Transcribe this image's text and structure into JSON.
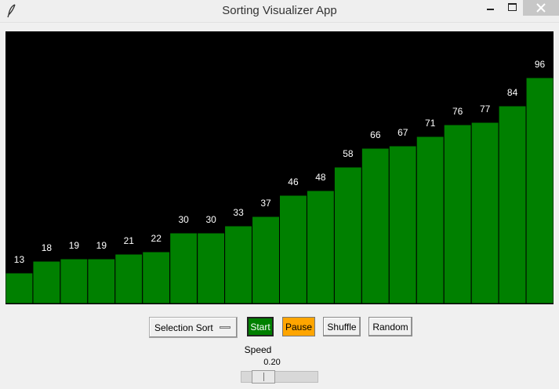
{
  "window": {
    "title": "Sorting Visualizer App",
    "icon": "feather-icon"
  },
  "chart_data": {
    "type": "bar",
    "values": [
      13,
      18,
      19,
      19,
      21,
      22,
      30,
      30,
      33,
      37,
      46,
      48,
      58,
      66,
      67,
      71,
      76,
      77,
      84,
      96
    ],
    "ylim": [
      0,
      100
    ],
    "bar_color": "#008000",
    "background": "#000000",
    "label_color": "#ffffff"
  },
  "controls": {
    "algorithm_selected": "Selection Sort",
    "start_label": "Start",
    "pause_label": "Pause",
    "shuffle_label": "Shuffle",
    "random_label": "Random",
    "speed_label": "Speed",
    "speed_value": "0.20",
    "speed_fraction": 0.2
  },
  "colors": {
    "start": "#008000",
    "pause": "#ffa500"
  }
}
